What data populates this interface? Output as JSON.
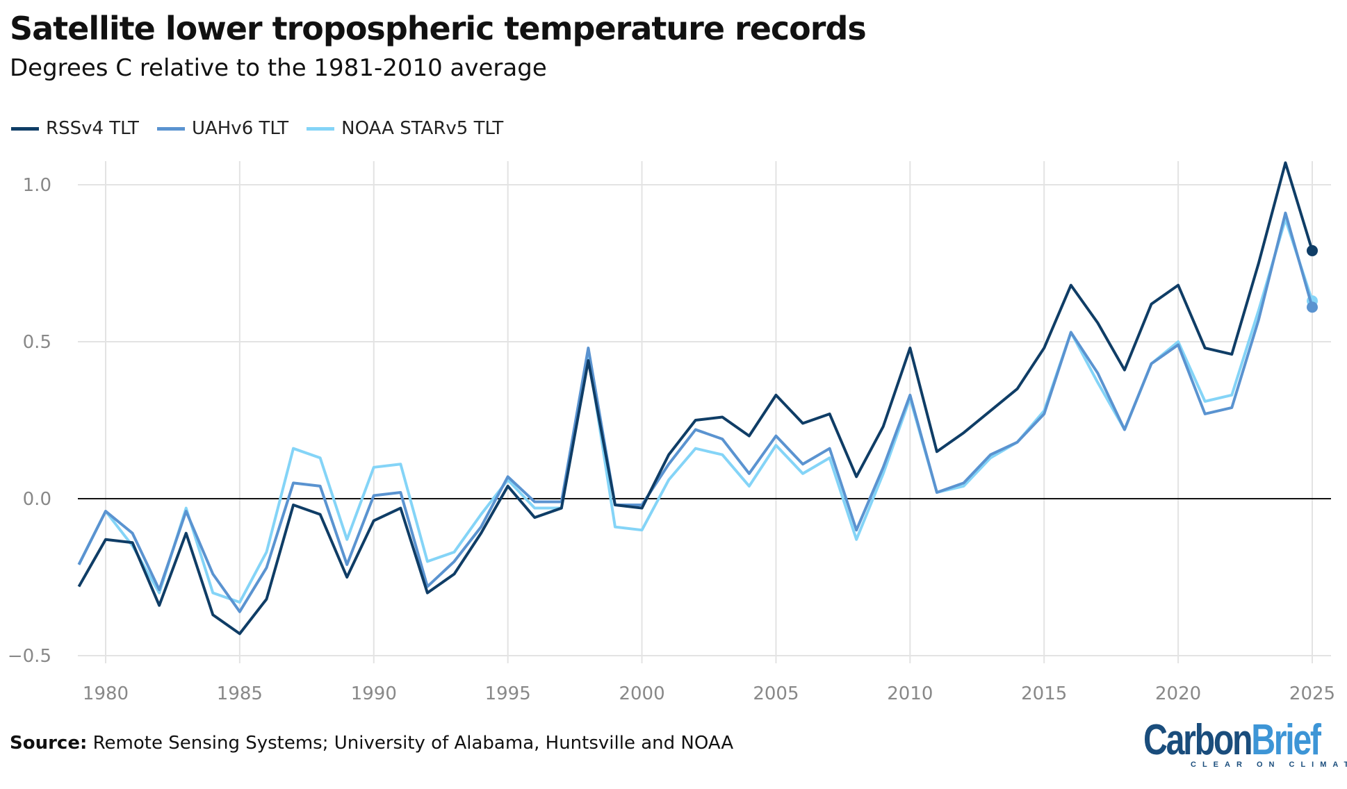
{
  "title": "Satellite lower tropospheric temperature records",
  "subtitle": "Degrees C relative to the 1981-2010 average",
  "source_label": "Source:",
  "source_text": " Remote Sensing Systems; University of Alabama, Huntsville and NOAA",
  "logo": {
    "part1": "Carbon",
    "part2": "Brief",
    "tagline": "CLEAR ON CLIMATE"
  },
  "chart_data": {
    "type": "line",
    "title": "Satellite lower tropospheric temperature records",
    "ylabel": "Degrees C relative to the 1981-2010 average",
    "xlim": [
      1979,
      2025
    ],
    "ylim": [
      -0.5,
      1.0
    ],
    "x_ticks": [
      "1980",
      "1985",
      "1990",
      "1995",
      "2000",
      "2005",
      "2010",
      "2015",
      "2020",
      "2025"
    ],
    "y_ticks": [
      "1.0",
      "0.5",
      "0.0",
      "−0.5"
    ],
    "y_tick_values": [
      1.0,
      0.5,
      0.0,
      -0.5
    ],
    "legend_position": "top-left",
    "x": [
      1979,
      1980,
      1981,
      1982,
      1983,
      1984,
      1985,
      1986,
      1987,
      1988,
      1989,
      1990,
      1991,
      1992,
      1993,
      1994,
      1995,
      1996,
      1997,
      1998,
      1999,
      2000,
      2001,
      2002,
      2003,
      2004,
      2005,
      2006,
      2007,
      2008,
      2009,
      2010,
      2011,
      2012,
      2013,
      2014,
      2015,
      2016,
      2017,
      2018,
      2019,
      2020,
      2021,
      2022,
      2023,
      2024,
      2025
    ],
    "series": [
      {
        "name": "RSSv4 TLT",
        "color": "#0f3d66",
        "end_marker": true,
        "values": [
          -0.28,
          -0.13,
          -0.14,
          -0.34,
          -0.11,
          -0.37,
          -0.43,
          -0.32,
          -0.02,
          -0.05,
          -0.25,
          -0.07,
          -0.03,
          -0.3,
          -0.24,
          -0.11,
          0.04,
          -0.06,
          -0.03,
          0.44,
          -0.02,
          -0.03,
          0.14,
          0.25,
          0.26,
          0.2,
          0.33,
          0.24,
          0.27,
          0.07,
          0.23,
          0.48,
          0.15,
          0.21,
          0.28,
          0.35,
          0.48,
          0.68,
          0.56,
          0.41,
          0.62,
          0.68,
          0.48,
          0.46,
          0.75,
          1.07,
          0.79
        ]
      },
      {
        "name": "UAHv6 TLT",
        "color": "#5a93d0",
        "end_marker": true,
        "values": [
          -0.21,
          -0.04,
          -0.11,
          -0.29,
          -0.04,
          -0.24,
          -0.36,
          -0.22,
          0.05,
          0.04,
          -0.21,
          0.01,
          0.02,
          -0.28,
          -0.2,
          -0.09,
          0.07,
          -0.01,
          -0.01,
          0.48,
          -0.02,
          -0.02,
          0.11,
          0.22,
          0.19,
          0.08,
          0.2,
          0.11,
          0.16,
          -0.1,
          0.1,
          0.33,
          0.02,
          0.05,
          0.14,
          0.18,
          0.27,
          0.53,
          0.4,
          0.22,
          0.43,
          0.49,
          0.27,
          0.29,
          0.57,
          0.91,
          0.61
        ]
      },
      {
        "name": "NOAA STARv5 TLT",
        "color": "#84d4f7",
        "end_marker": true,
        "values": [
          -0.21,
          -0.04,
          -0.15,
          -0.3,
          -0.03,
          -0.3,
          -0.33,
          -0.17,
          0.16,
          0.13,
          -0.13,
          0.1,
          0.11,
          -0.2,
          -0.17,
          -0.05,
          0.06,
          -0.03,
          -0.03,
          0.46,
          -0.09,
          -0.1,
          0.06,
          0.16,
          0.14,
          0.04,
          0.17,
          0.08,
          0.13,
          -0.13,
          0.08,
          0.32,
          0.02,
          0.04,
          0.13,
          0.18,
          0.28,
          0.53,
          0.37,
          0.22,
          0.43,
          0.5,
          0.31,
          0.33,
          0.6,
          0.89,
          0.63
        ]
      }
    ]
  }
}
